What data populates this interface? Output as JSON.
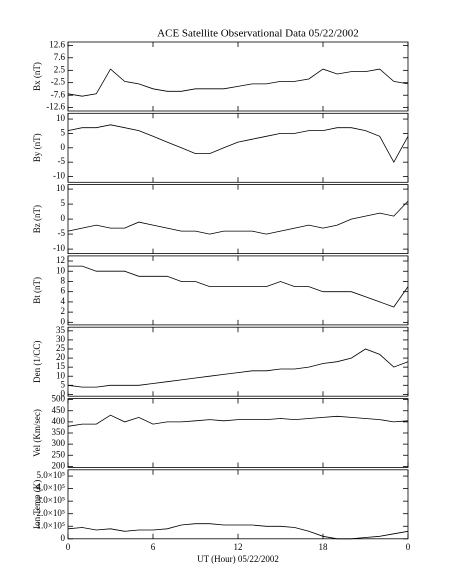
{
  "chart_data": [
    {
      "type": "line",
      "title": "ACE Satellite Observational Data   05/22/2002",
      "ylabel": "Bx (nT)",
      "color": "#000000",
      "x": [
        0,
        1,
        2,
        3,
        4,
        5,
        6,
        7,
        8,
        9,
        10,
        11,
        12,
        13,
        14,
        15,
        16,
        17,
        18,
        19,
        20,
        21,
        22,
        23,
        24
      ],
      "values": [
        -7,
        -8,
        -7,
        3,
        -2,
        -3,
        -5,
        -6,
        -6,
        -5,
        -5,
        -5,
        -4,
        -3,
        -3,
        -2,
        -2,
        -1,
        3,
        1,
        2,
        2,
        3,
        -2,
        -3
      ],
      "xlim": [
        0,
        24
      ],
      "xticks": [
        0,
        6,
        12,
        18,
        24
      ],
      "ylim": [
        -14,
        14
      ],
      "yticks": [
        -12.6,
        -7.6,
        -2.5,
        2.5,
        7.6,
        12.6
      ]
    },
    {
      "type": "line",
      "ylabel": "By (nT)",
      "color": "#000000",
      "x": [
        0,
        1,
        2,
        3,
        4,
        5,
        6,
        7,
        8,
        9,
        10,
        11,
        12,
        13,
        14,
        15,
        16,
        17,
        18,
        19,
        20,
        21,
        22,
        23,
        24
      ],
      "values": [
        6,
        7,
        7,
        8,
        7,
        6,
        4,
        2,
        0,
        -2,
        -2,
        0,
        2,
        3,
        4,
        5,
        5,
        6,
        6,
        7,
        7,
        6,
        4,
        -5,
        4
      ],
      "xlim": [
        0,
        24
      ],
      "xticks": [
        0,
        6,
        12,
        18,
        24
      ],
      "ylim": [
        -12,
        12
      ],
      "yticks": [
        -10,
        -5,
        0,
        5,
        10
      ]
    },
    {
      "type": "line",
      "ylabel": "Bz (nT)",
      "color": "#000000",
      "x": [
        0,
        1,
        2,
        3,
        4,
        5,
        6,
        7,
        8,
        9,
        10,
        11,
        12,
        13,
        14,
        15,
        16,
        17,
        18,
        19,
        20,
        21,
        22,
        23,
        24
      ],
      "values": [
        -4,
        -3,
        -2,
        -3,
        -3,
        -1,
        -2,
        -3,
        -4,
        -4,
        -5,
        -4,
        -4,
        -4,
        -5,
        -4,
        -3,
        -2,
        -3,
        -2,
        0,
        1,
        2,
        1,
        6
      ],
      "xlim": [
        0,
        24
      ],
      "xticks": [
        0,
        6,
        12,
        18,
        24
      ],
      "ylim": [
        -11.5,
        11.5
      ],
      "yticks": [
        -10,
        -5,
        0,
        5,
        10
      ]
    },
    {
      "type": "line",
      "ylabel": "Bt (nT)",
      "color": "#000000",
      "x": [
        0,
        1,
        2,
        3,
        4,
        5,
        6,
        7,
        8,
        9,
        10,
        11,
        12,
        13,
        14,
        15,
        16,
        17,
        18,
        19,
        20,
        21,
        22,
        23,
        24
      ],
      "values": [
        11,
        11,
        10,
        10,
        10,
        9,
        9,
        9,
        8,
        8,
        7,
        7,
        7,
        7,
        7,
        8,
        7,
        7,
        6,
        6,
        6,
        5,
        4,
        3,
        7
      ],
      "xlim": [
        0,
        24
      ],
      "xticks": [
        0,
        6,
        12,
        18,
        24
      ],
      "ylim": [
        -0.5,
        13
      ],
      "yticks": [
        0,
        2,
        4,
        6,
        8,
        10,
        12
      ]
    },
    {
      "type": "line",
      "ylabel": "Den (1/CC)",
      "color": "#000000",
      "x": [
        0,
        1,
        2,
        3,
        4,
        5,
        6,
        7,
        8,
        9,
        10,
        11,
        12,
        13,
        14,
        15,
        16,
        17,
        18,
        19,
        20,
        21,
        22,
        23,
        24
      ],
      "values": [
        5,
        4,
        4,
        5,
        5,
        5,
        6,
        7,
        8,
        9,
        10,
        11,
        12,
        13,
        13,
        14,
        14,
        15,
        17,
        18,
        20,
        25,
        22,
        15,
        18
      ],
      "xlim": [
        0,
        24
      ],
      "xticks": [
        0,
        6,
        12,
        18,
        24
      ],
      "ylim": [
        -1,
        37
      ],
      "yticks": [
        0,
        5,
        10,
        15,
        20,
        25,
        30,
        35
      ]
    },
    {
      "type": "line",
      "ylabel": "Vel (Km/sec)",
      "color": "#000000",
      "x": [
        0,
        1,
        2,
        3,
        4,
        5,
        6,
        7,
        8,
        9,
        10,
        11,
        12,
        13,
        14,
        15,
        16,
        17,
        18,
        19,
        20,
        21,
        22,
        23,
        24
      ],
      "values": [
        380,
        390,
        390,
        430,
        400,
        420,
        390,
        400,
        400,
        405,
        410,
        405,
        410,
        410,
        410,
        415,
        410,
        415,
        420,
        425,
        420,
        415,
        410,
        400,
        405
      ],
      "xlim": [
        0,
        24
      ],
      "xticks": [
        0,
        6,
        12,
        18,
        24
      ],
      "ylim": [
        195,
        505
      ],
      "yticks": [
        200,
        250,
        300,
        350,
        400,
        450,
        500
      ]
    },
    {
      "type": "line",
      "ylabel": "Ion Temp (K)",
      "xlabel": "UT (Hour)  05/22/2002",
      "color": "#000000",
      "x": [
        0,
        1,
        2,
        3,
        4,
        5,
        6,
        7,
        8,
        9,
        10,
        11,
        12,
        13,
        14,
        15,
        16,
        17,
        18,
        19,
        20,
        21,
        22,
        23,
        24
      ],
      "values": [
        80000,
        90000,
        70000,
        80000,
        60000,
        70000,
        70000,
        80000,
        110000,
        120000,
        120000,
        110000,
        110000,
        110000,
        100000,
        100000,
        90000,
        60000,
        20000,
        0,
        0,
        10000,
        20000,
        40000,
        60000
      ],
      "xlim": [
        0,
        24
      ],
      "xticks": [
        0,
        6,
        12,
        18,
        {
          "value": 24,
          "label": "0"
        }
      ],
      "ylim": [
        0,
        550000
      ],
      "yticks": [
        0,
        {
          "value": 100000,
          "label": "1.0×10⁵"
        },
        {
          "value": 200000,
          "label": "2.0×10⁵"
        },
        {
          "value": 300000,
          "label": "3.0×10⁵"
        },
        {
          "value": 400000,
          "label": "4.0×10⁵"
        },
        {
          "value": 500000,
          "label": "5.0×10⁵"
        }
      ]
    }
  ]
}
